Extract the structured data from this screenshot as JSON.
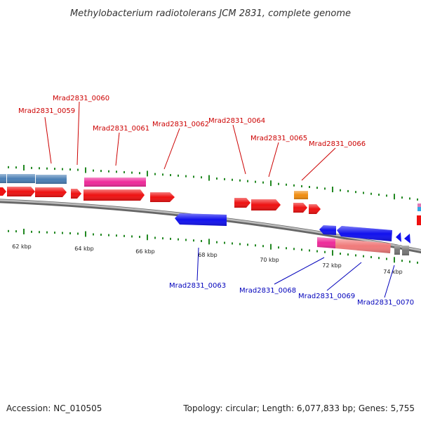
{
  "title": "Methylobacterium radiotolerans JCM 2831, complete genome",
  "footer": {
    "accession": "Accession: NC_010505",
    "topology": "Topology: circular; Length: 6,077,833 bp; Genes: 5,755"
  },
  "colors": {
    "forward_label": "#cc0000",
    "reverse_label": "#0000bb",
    "forward_gene": "#ee1111",
    "reverse_gene": "#1111ee",
    "steelblue_gene": "#4a7fb5",
    "pink_gene": "#ee2a9a",
    "salmon_gene": "#f07a7a",
    "orange_gene": "#f08c10",
    "gray_gene": "#777777",
    "tick": "#228822",
    "axis": "#888888"
  },
  "ticks": [
    "62 kbp",
    "64 kbp",
    "66 kbp",
    "68 kbp",
    "70 kbp",
    "72 kbp",
    "74 kbp"
  ],
  "forward_labels": [
    "Mrad2831_0059",
    "Mrad2831_0060",
    "Mrad2831_0061",
    "Mrad2831_0062",
    "Mrad2831_0064",
    "Mrad2831_0065",
    "Mrad2831_0066"
  ],
  "reverse_labels": [
    "Mrad2831_0063",
    "Mrad2831_0068",
    "Mrad2831_0069",
    "Mrad2831_0070"
  ]
}
